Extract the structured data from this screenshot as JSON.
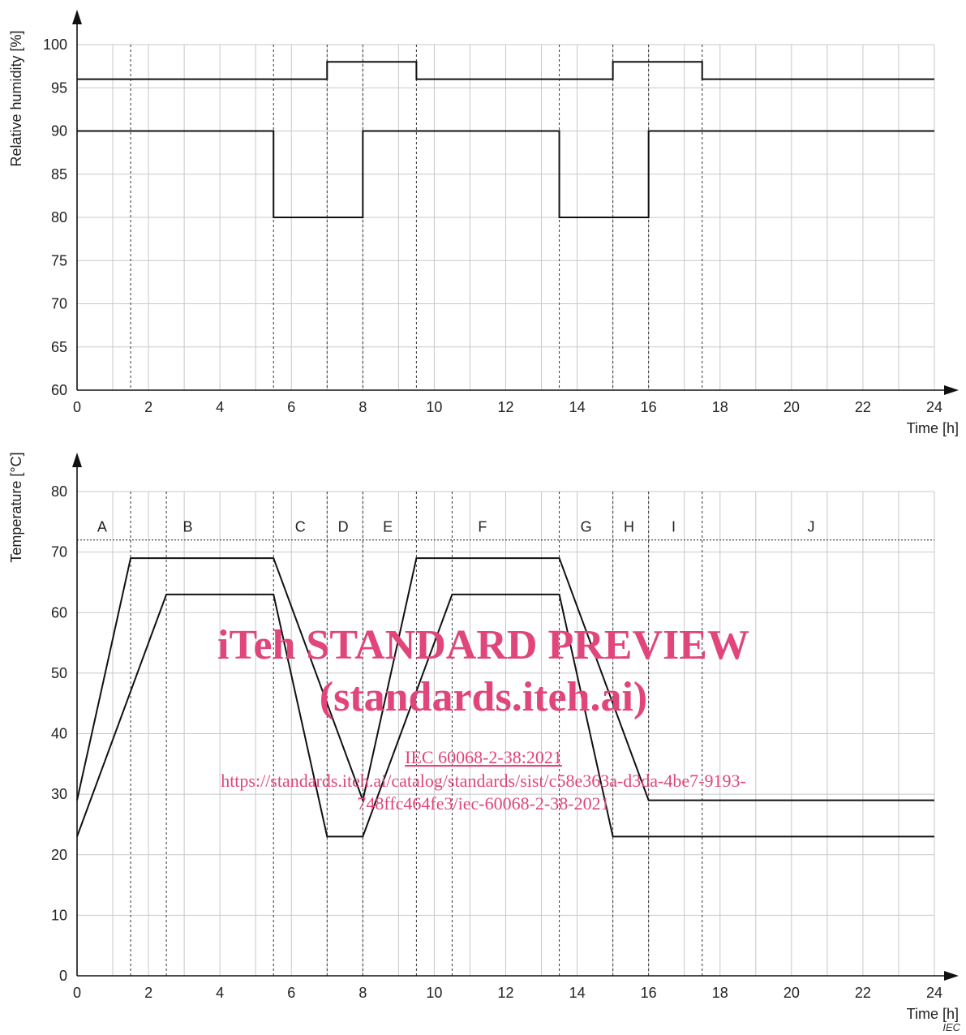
{
  "chart_data": [
    {
      "type": "line",
      "ylabel": "Relative humidity [%]",
      "xlabel": "Time [h]",
      "xlim": [
        0,
        24
      ],
      "ylim": [
        60,
        100
      ],
      "x_ticks": [
        0,
        2,
        4,
        6,
        8,
        10,
        12,
        14,
        16,
        18,
        20,
        22,
        24
      ],
      "y_ticks": [
        60,
        65,
        70,
        75,
        80,
        85,
        90,
        95,
        100
      ],
      "grid": true,
      "series": [
        {
          "x": [
            0,
            7,
            7,
            9.5,
            9.5,
            15,
            15,
            17.5,
            17.5,
            24
          ],
          "values": [
            96,
            96,
            98,
            98,
            96,
            96,
            98,
            98,
            96,
            96
          ]
        },
        {
          "x": [
            0,
            5.5,
            5.5,
            8,
            8,
            13.5,
            13.5,
            16,
            16,
            24
          ],
          "values": [
            90,
            90,
            80,
            80,
            90,
            90,
            80,
            80,
            90,
            90
          ]
        }
      ],
      "dashed_verticals": [
        1.5,
        5.5,
        7,
        8,
        9.5,
        13.5,
        15,
        16,
        17.5
      ]
    },
    {
      "type": "line",
      "ylabel": "Temperature [°C]",
      "xlabel": "Time [h]",
      "xlim": [
        0,
        24
      ],
      "ylim": [
        0,
        80
      ],
      "x_ticks": [
        0,
        2,
        4,
        6,
        8,
        10,
        12,
        14,
        16,
        18,
        20,
        22,
        24
      ],
      "y_ticks": [
        0,
        10,
        20,
        30,
        40,
        50,
        60,
        70,
        80
      ],
      "grid": true,
      "series": [
        {
          "x": [
            0,
            1.5,
            5.5,
            8,
            9.5,
            13.5,
            16,
            24
          ],
          "values": [
            29,
            69,
            69,
            29,
            69,
            69,
            29,
            29
          ]
        },
        {
          "x": [
            0,
            2.5,
            5.5,
            7,
            8,
            10.5,
            13.5,
            15,
            24
          ],
          "values": [
            23,
            63,
            63,
            23,
            23,
            63,
            63,
            23,
            23
          ]
        }
      ],
      "dashed_verticals": [
        1.5,
        2.5,
        5.5,
        7,
        8,
        9.5,
        10.5,
        13.5,
        15,
        16,
        17.5
      ],
      "dotted_hline": 72,
      "phases": [
        {
          "label": "A",
          "x": 0.7
        },
        {
          "label": "B",
          "x": 3.1
        },
        {
          "label": "C",
          "x": 6.25
        },
        {
          "label": "D",
          "x": 7.45
        },
        {
          "label": "E",
          "x": 8.7
        },
        {
          "label": "F",
          "x": 11.35
        },
        {
          "label": "G",
          "x": 14.25
        },
        {
          "label": "H",
          "x": 15.45
        },
        {
          "label": "I",
          "x": 16.7
        },
        {
          "label": "J",
          "x": 20.55
        }
      ]
    }
  ],
  "watermark": {
    "line1": "iTeh STANDARD PREVIEW",
    "line2": "(standards.iteh.ai)",
    "line3": "IEC 60068-2-38:2021",
    "line4": "https://standards.iteh.ai/catalog/standards/sist/c58e363a-d3da-4be7-9193-",
    "line5": "748ffc464fe3/iec-60068-2-38-2021",
    "color": "#e0457b"
  },
  "footer_mark": "IEC"
}
